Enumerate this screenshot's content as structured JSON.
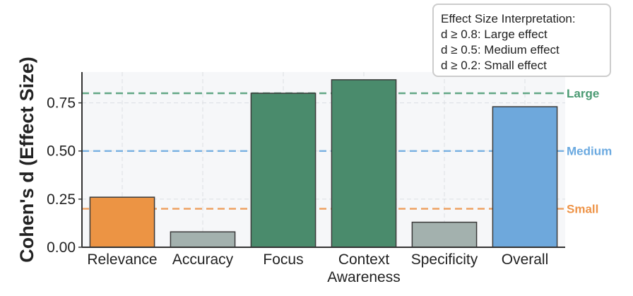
{
  "chart_data": {
    "type": "bar",
    "categories": [
      "Relevance",
      "Accuracy",
      "Focus",
      "Context\nAwareness",
      "Specificity",
      "Overall"
    ],
    "values": [
      0.26,
      0.08,
      0.8,
      0.87,
      0.13,
      0.73
    ],
    "bar_colors": [
      "#ec9444",
      "#a3b1ae",
      "#4a8b6c",
      "#4a8b6c",
      "#a3b1ae",
      "#6ea8dc"
    ],
    "ylabel": "Cohen's d (Effect Size)",
    "xlabel": "",
    "ylim": [
      0,
      0.91
    ],
    "yticks": [
      0.0,
      0.25,
      0.5,
      0.75
    ],
    "ytick_labels": [
      "0.00",
      "0.25",
      "0.50",
      "0.75"
    ],
    "grid": true,
    "reference_lines": [
      {
        "value": 0.8,
        "label": "Large",
        "color": "#4a9a72"
      },
      {
        "value": 0.5,
        "label": "Medium",
        "color": "#6aa9e0"
      },
      {
        "value": 0.2,
        "label": "Small",
        "color": "#ee9448"
      }
    ],
    "annotation_box": {
      "placement": "top-right",
      "lines": [
        "Effect Size Interpretation:",
        "d ≥ 0.8: Large effect",
        "d ≥ 0.5: Medium effect",
        "d ≥ 0.2: Small effect"
      ]
    }
  }
}
